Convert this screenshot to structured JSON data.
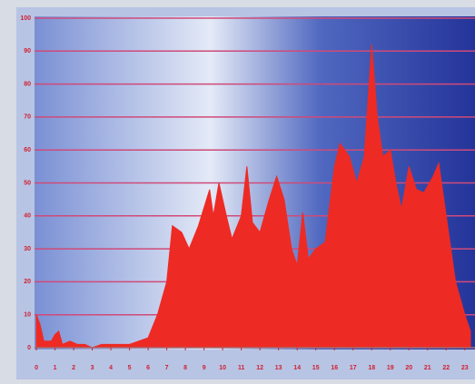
{
  "chart_data": {
    "type": "area",
    "color": "#ee2a24",
    "grid": true,
    "x": [
      0,
      0.2,
      0.4,
      0.8,
      1.0,
      1.2,
      1.4,
      1.8,
      2.2,
      2.6,
      3.0,
      3.5,
      4.0,
      4.5,
      5.0,
      5.5,
      6.0,
      6.5,
      7.0,
      7.3,
      7.8,
      8.2,
      8.7,
      9.3,
      9.5,
      9.8,
      10.2,
      10.5,
      11.0,
      11.3,
      11.6,
      12.0,
      12.5,
      12.9,
      13.3,
      13.7,
      14.0,
      14.3,
      14.6,
      15.0,
      15.5,
      16.0,
      16.3,
      16.8,
      17.2,
      17.6,
      18.0,
      18.3,
      18.6,
      19.0,
      19.3,
      19.6,
      20.0,
      20.4,
      20.8,
      21.3,
      21.6,
      22.0,
      22.5,
      23.0,
      23.3
    ],
    "values": [
      10,
      7,
      2,
      2,
      4,
      5,
      1,
      2,
      1,
      1,
      0,
      1,
      1,
      1,
      1,
      2,
      3,
      10,
      20,
      37,
      35,
      30,
      37,
      48,
      40,
      50,
      40,
      33,
      40,
      55,
      38,
      35,
      45,
      52,
      45,
      30,
      25,
      41,
      27,
      30,
      32,
      55,
      62,
      58,
      50,
      58,
      92,
      70,
      58,
      60,
      50,
      42,
      55,
      48,
      47,
      52,
      56,
      40,
      20,
      10,
      5
    ],
    "xlim": [
      -0.1,
      23.4
    ],
    "ylim": [
      0,
      100
    ],
    "xticks": [
      0,
      1,
      2,
      3,
      4,
      5,
      6,
      7,
      8,
      9,
      10,
      11,
      12,
      13,
      14,
      15,
      16,
      17,
      18,
      19,
      20,
      21,
      22,
      23
    ],
    "yticks": [
      0,
      10,
      20,
      30,
      40,
      50,
      60,
      70,
      80,
      90,
      100
    ]
  }
}
